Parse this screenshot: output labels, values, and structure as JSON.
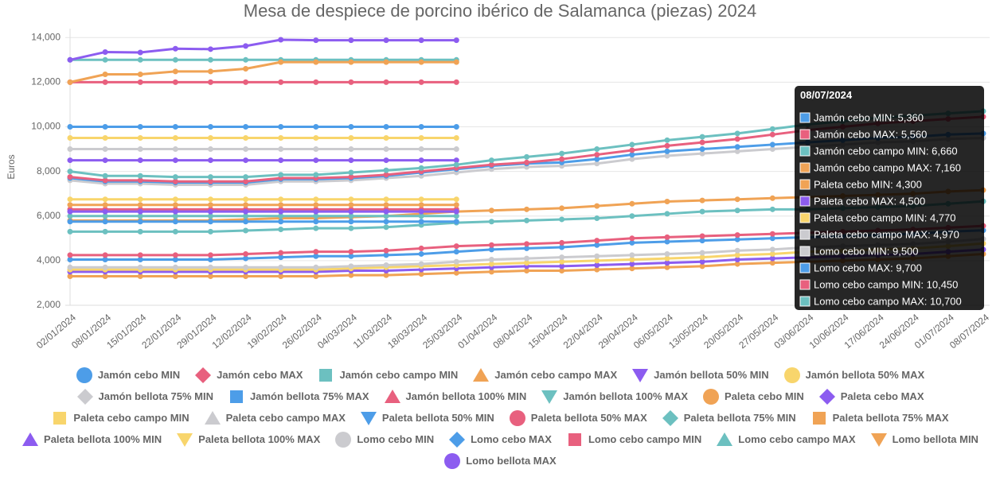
{
  "chart_data": {
    "type": "line",
    "title": "Mesa de despiece de porcino ibérico de Salamanca (piezas) 2024",
    "y_label": "Euros",
    "categories": [
      "02/01/2024",
      "08/01/2024",
      "15/01/2024",
      "22/01/2024",
      "29/01/2024",
      "12/02/2024",
      "19/02/2024",
      "26/02/2024",
      "04/03/2024",
      "11/03/2024",
      "18/03/2024",
      "25/03/2024",
      "01/04/2024",
      "08/04/2024",
      "15/04/2024",
      "22/04/2024",
      "29/04/2024",
      "06/05/2024",
      "13/05/2024",
      "20/05/2024",
      "27/05/2024",
      "03/06/2024",
      "10/06/2024",
      "17/06/2024",
      "24/06/2024",
      "01/07/2024",
      "08/07/2024"
    ],
    "ylim": [
      2000,
      14400
    ],
    "yticks": [
      {
        "value": 2000,
        "label": "2,000"
      },
      {
        "value": 4000,
        "label": "4,000"
      },
      {
        "value": 6000,
        "label": "6,000"
      },
      {
        "value": 8000,
        "label": "8,000"
      },
      {
        "value": 10000,
        "label": "10,000"
      },
      {
        "value": 12000,
        "label": "12,000"
      },
      {
        "value": 14000,
        "label": "14,000"
      }
    ],
    "grid": true,
    "legend": "bottom",
    "series": [
      {
        "name": "Jamón cebo MIN",
        "color": "#4d9de8",
        "values": [
          4050,
          4050,
          4050,
          4050,
          4050,
          4100,
          4150,
          4200,
          4200,
          4250,
          4300,
          4400,
          4500,
          4550,
          4600,
          4700,
          4800,
          4850,
          4900,
          4950,
          5000,
          5050,
          5100,
          5150,
          5200,
          5300,
          5360
        ]
      },
      {
        "name": "Jamón cebo MAX",
        "color": "#e8607e",
        "values": [
          4250,
          4250,
          4250,
          4250,
          4250,
          4300,
          4350,
          4400,
          4400,
          4450,
          4550,
          4650,
          4700,
          4750,
          4800,
          4900,
          5000,
          5050,
          5100,
          5150,
          5200,
          5250,
          5300,
          5350,
          5400,
          5480,
          5560
        ]
      },
      {
        "name": "Jamón cebo campo MIN",
        "color": "#6cc0c0",
        "values": [
          5300,
          5300,
          5300,
          5300,
          5300,
          5350,
          5400,
          5450,
          5450,
          5500,
          5600,
          5700,
          5750,
          5800,
          5850,
          5900,
          6000,
          6100,
          6200,
          6250,
          6300,
          6300,
          6350,
          6400,
          6450,
          6550,
          6660
        ]
      },
      {
        "name": "Jamón cebo campo MAX",
        "color": "#f0a355",
        "values": [
          5800,
          5800,
          5800,
          5800,
          5800,
          5850,
          5900,
          5900,
          5950,
          6000,
          6100,
          6200,
          6250,
          6300,
          6350,
          6450,
          6550,
          6650,
          6700,
          6750,
          6800,
          6850,
          6900,
          6950,
          7000,
          7100,
          7160
        ]
      },
      {
        "name": "Jamón bellota 50% MIN",
        "color": "#8c5cf0",
        "values": [
          8500,
          8500,
          8500,
          8500,
          8500,
          8500,
          8500,
          8500,
          8500,
          8500,
          8500,
          8500,
          null,
          null,
          null,
          null,
          null,
          null,
          null,
          null,
          null,
          null,
          null,
          null,
          null,
          null,
          null
        ]
      },
      {
        "name": "Jamón bellota 50% MAX",
        "color": "#f8d56c",
        "values": [
          9500,
          9500,
          9500,
          9500,
          9500,
          9500,
          9500,
          9500,
          9500,
          9500,
          9500,
          9500,
          null,
          null,
          null,
          null,
          null,
          null,
          null,
          null,
          null,
          null,
          null,
          null,
          null,
          null,
          null
        ]
      },
      {
        "name": "Jamón bellota 75% MIN",
        "color": "#cbcbcf",
        "values": [
          9000,
          9000,
          9000,
          9000,
          9000,
          9000,
          9000,
          9000,
          9000,
          9000,
          9000,
          9000,
          null,
          null,
          null,
          null,
          null,
          null,
          null,
          null,
          null,
          null,
          null,
          null,
          null,
          null,
          null
        ]
      },
      {
        "name": "Jamón bellota 75% MAX",
        "color": "#4d9de8",
        "values": [
          10000,
          10000,
          10000,
          10000,
          10000,
          10000,
          10000,
          10000,
          10000,
          10000,
          10000,
          10000,
          null,
          null,
          null,
          null,
          null,
          null,
          null,
          null,
          null,
          null,
          null,
          null,
          null,
          null,
          null
        ]
      },
      {
        "name": "Jamón bellota 100% MIN",
        "color": "#e8607e",
        "values": [
          12000,
          12000,
          12000,
          12000,
          12000,
          12000,
          12000,
          12000,
          12000,
          12000,
          12000,
          12000,
          null,
          null,
          null,
          null,
          null,
          null,
          null,
          null,
          null,
          null,
          null,
          null,
          null,
          null,
          null
        ]
      },
      {
        "name": "Jamón bellota 100% MAX",
        "color": "#6cc0c0",
        "values": [
          13000,
          13000,
          13000,
          13000,
          13000,
          13000,
          13000,
          13000,
          13000,
          13000,
          13000,
          13000,
          null,
          null,
          null,
          null,
          null,
          null,
          null,
          null,
          null,
          null,
          null,
          null,
          null,
          null,
          null
        ]
      },
      {
        "name": "Paleta cebo MIN",
        "color": "#f0a355",
        "values": [
          3300,
          3300,
          3300,
          3300,
          3300,
          3300,
          3300,
          3300,
          3350,
          3350,
          3400,
          3450,
          3500,
          3550,
          3550,
          3600,
          3650,
          3700,
          3750,
          3850,
          3900,
          3950,
          4000,
          4050,
          4100,
          4200,
          4300
        ]
      },
      {
        "name": "Paleta cebo MAX",
        "color": "#8c5cf0",
        "values": [
          3500,
          3500,
          3500,
          3500,
          3500,
          3500,
          3500,
          3500,
          3550,
          3550,
          3600,
          3650,
          3700,
          3750,
          3750,
          3800,
          3850,
          3900,
          3950,
          4050,
          4100,
          4150,
          4200,
          4250,
          4300,
          4400,
          4500
        ]
      },
      {
        "name": "Paleta cebo campo MIN",
        "color": "#f8d56c",
        "values": [
          3600,
          3600,
          3600,
          3600,
          3600,
          3600,
          3600,
          3600,
          3650,
          3700,
          3750,
          3800,
          3850,
          3900,
          3950,
          4000,
          4050,
          4100,
          4150,
          4250,
          4300,
          4400,
          4450,
          4500,
          4550,
          4650,
          4770
        ]
      },
      {
        "name": "Paleta cebo campo MAX",
        "color": "#cbcbcf",
        "values": [
          3700,
          3700,
          3700,
          3700,
          3700,
          3700,
          3700,
          3700,
          3750,
          3800,
          3850,
          3950,
          4050,
          4100,
          4150,
          4200,
          4250,
          4300,
          4350,
          4450,
          4500,
          4600,
          4650,
          4700,
          4750,
          4850,
          4970
        ]
      },
      {
        "name": "Paleta bellota 50% MIN",
        "color": "#4d9de8",
        "values": [
          5750,
          5750,
          5750,
          5750,
          5750,
          5750,
          5750,
          5750,
          5750,
          5750,
          5750,
          5750,
          null,
          null,
          null,
          null,
          null,
          null,
          null,
          null,
          null,
          null,
          null,
          null,
          null,
          null,
          null
        ]
      },
      {
        "name": "Paleta bellota 50% MAX",
        "color": "#e8607e",
        "values": [
          6300,
          6300,
          6300,
          6300,
          6300,
          6300,
          6300,
          6300,
          6300,
          6300,
          6300,
          6300,
          null,
          null,
          null,
          null,
          null,
          null,
          null,
          null,
          null,
          null,
          null,
          null,
          null,
          null,
          null
        ]
      },
      {
        "name": "Paleta bellota 75% MIN",
        "color": "#6cc0c0",
        "values": [
          6000,
          6000,
          6000,
          6000,
          6000,
          6000,
          6000,
          6000,
          6000,
          6000,
          6000,
          6000,
          null,
          null,
          null,
          null,
          null,
          null,
          null,
          null,
          null,
          null,
          null,
          null,
          null,
          null,
          null
        ]
      },
      {
        "name": "Paleta bellota 75% MAX",
        "color": "#f0a355",
        "values": [
          6500,
          6500,
          6500,
          6500,
          6500,
          6500,
          6500,
          6500,
          6500,
          6500,
          6500,
          6500,
          null,
          null,
          null,
          null,
          null,
          null,
          null,
          null,
          null,
          null,
          null,
          null,
          null,
          null,
          null
        ]
      },
      {
        "name": "Paleta bellota 100% MIN",
        "color": "#8c5cf0",
        "values": [
          6200,
          6200,
          6200,
          6200,
          6200,
          6200,
          6200,
          6200,
          6200,
          6200,
          6200,
          6200,
          null,
          null,
          null,
          null,
          null,
          null,
          null,
          null,
          null,
          null,
          null,
          null,
          null,
          null,
          null
        ]
      },
      {
        "name": "Paleta bellota 100% MAX",
        "color": "#f8d56c",
        "values": [
          6750,
          6750,
          6750,
          6750,
          6750,
          6750,
          6750,
          6750,
          6750,
          6750,
          6750,
          6750,
          null,
          null,
          null,
          null,
          null,
          null,
          null,
          null,
          null,
          null,
          null,
          null,
          null,
          null,
          null
        ]
      },
      {
        "name": "Lomo cebo MIN",
        "color": "#cbcbcf",
        "values": [
          7600,
          7450,
          7450,
          7400,
          7400,
          7400,
          7550,
          7550,
          7600,
          7700,
          7800,
          7950,
          8100,
          8200,
          8250,
          8350,
          8550,
          8700,
          8800,
          8900,
          9000,
          9100,
          9200,
          9300,
          9350,
          9450,
          9500
        ]
      },
      {
        "name": "Lomo cebo MAX",
        "color": "#4d9de8",
        "values": [
          7700,
          7550,
          7550,
          7500,
          7500,
          7500,
          7650,
          7650,
          7700,
          7800,
          7950,
          8100,
          8250,
          8350,
          8400,
          8550,
          8750,
          8900,
          9000,
          9100,
          9200,
          9300,
          9400,
          9500,
          9550,
          9650,
          9700
        ]
      },
      {
        "name": "Lomo cebo campo MIN",
        "color": "#e8607e",
        "values": [
          7750,
          7600,
          7600,
          7550,
          7550,
          7550,
          7700,
          7700,
          7750,
          7850,
          8000,
          8150,
          8300,
          8400,
          8550,
          8750,
          8950,
          9150,
          9300,
          9450,
          9650,
          9850,
          10000,
          10150,
          10250,
          10350,
          10450
        ]
      },
      {
        "name": "Lomo cebo campo MAX",
        "color": "#6cc0c0",
        "values": [
          8000,
          7800,
          7800,
          7750,
          7750,
          7750,
          7850,
          7850,
          7950,
          8050,
          8150,
          8300,
          8500,
          8650,
          8800,
          9000,
          9200,
          9400,
          9550,
          9700,
          9900,
          10100,
          10250,
          10400,
          10500,
          10600,
          10700
        ]
      },
      {
        "name": "Lomo bellota MIN",
        "color": "#f0a355",
        "values": [
          12000,
          12350,
          12350,
          12480,
          12480,
          12600,
          12900,
          12900,
          12900,
          12900,
          12900,
          12900,
          null,
          null,
          null,
          null,
          null,
          null,
          null,
          null,
          null,
          null,
          null,
          null,
          null,
          null,
          null
        ]
      },
      {
        "name": "Lomo bellota MAX",
        "color": "#8c5cf0",
        "values": [
          13000,
          13350,
          13330,
          13500,
          13480,
          13620,
          13900,
          13880,
          13880,
          13880,
          13880,
          13880,
          null,
          null,
          null,
          null,
          null,
          null,
          null,
          null,
          null,
          null,
          null,
          null,
          null,
          null,
          null
        ]
      }
    ],
    "tooltip": {
      "title": "08/07/2024",
      "items": [
        {
          "label": "Jamón cebo MIN: 5,360",
          "color": "#4d9de8"
        },
        {
          "label": "Jamón cebo MAX: 5,560",
          "color": "#e8607e"
        },
        {
          "label": "Jamón cebo campo MIN: 6,660",
          "color": "#6cc0c0"
        },
        {
          "label": "Jamón cebo campo MAX: 7,160",
          "color": "#f0a355"
        },
        {
          "label": "Paleta cebo MIN: 4,300",
          "color": "#f0a355"
        },
        {
          "label": "Paleta cebo MAX: 4,500",
          "color": "#8c5cf0"
        },
        {
          "label": "Paleta cebo campo MIN: 4,770",
          "color": "#f8d56c"
        },
        {
          "label": "Paleta cebo campo MAX: 4,970",
          "color": "#cbcbcf"
        },
        {
          "label": "Lomo cebo MIN: 9,500",
          "color": "#cbcbcf"
        },
        {
          "label": "Lomo cebo MAX: 9,700",
          "color": "#4d9de8"
        },
        {
          "label": "Lomo cebo campo MIN: 10,450",
          "color": "#e8607e"
        },
        {
          "label": "Lomo cebo campo MAX: 10,700",
          "color": "#6cc0c0"
        }
      ]
    }
  }
}
